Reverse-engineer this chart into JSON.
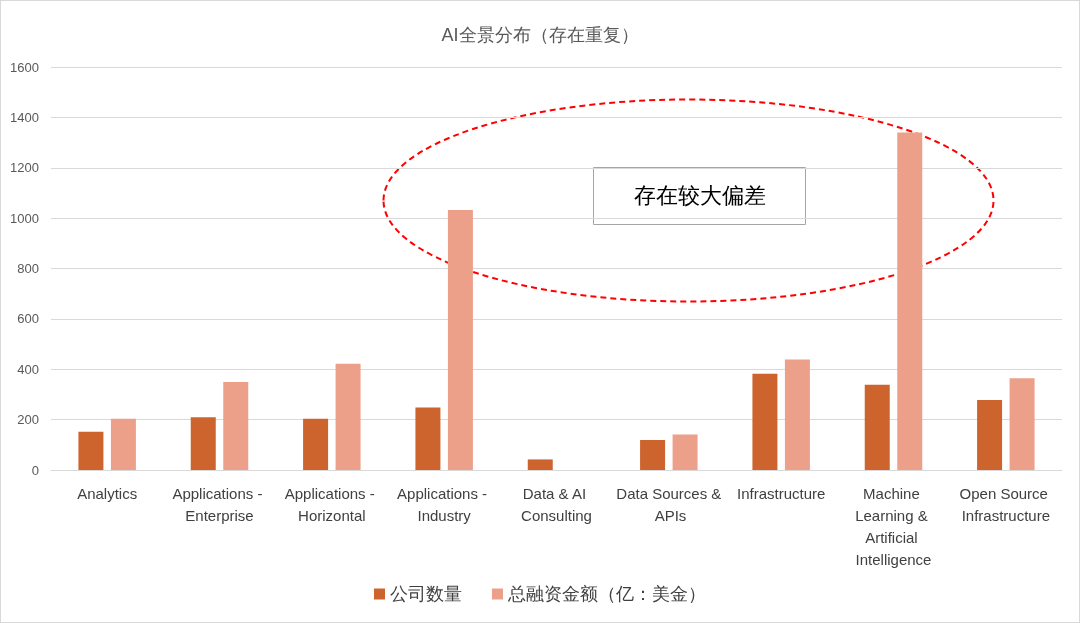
{
  "chart_data": {
    "type": "bar",
    "title": "AI全景分布（存在重复）",
    "categories": [
      "Analytics",
      "Applications - Enterprise",
      "Applications - Horizontal",
      "Applications - Industry",
      "Data & AI Consulting",
      "Data Sources & APIs",
      "Infrastructure",
      "Machine Learning & Artificial Intelligence",
      "Open Source Infrastructure"
    ],
    "series": [
      {
        "name": "公司数量",
        "color": "#cd632d",
        "values": [
          152,
          209,
          203,
          248,
          42,
          119,
          382,
          338,
          278
        ]
      },
      {
        "name": "总融资金额（亿：美金）",
        "color": "#eda089",
        "values": [
          203,
          349,
          422,
          1032,
          null,
          141,
          439,
          1340,
          364
        ]
      }
    ],
    "ylim": [
      0,
      1600
    ],
    "yticks": [
      0,
      200,
      400,
      600,
      800,
      1000,
      1200,
      1400,
      1600
    ],
    "grid": "y",
    "legend": "bottom",
    "annotations": [
      "存在较大偏差"
    ]
  }
}
